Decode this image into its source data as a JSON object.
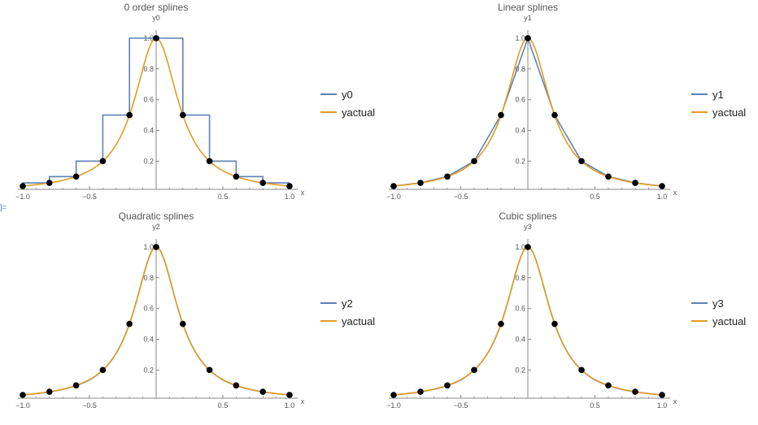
{
  "cell_label": "]=",
  "colors": {
    "spline": "#5e81b5",
    "actual": "#e19c24",
    "axis": "#888888",
    "points": "#000000",
    "tick_text": "#555555",
    "title_text": "#555555"
  },
  "chart_data": [
    {
      "type": "line",
      "title": "0 order splines",
      "xlabel": "x",
      "ylabel": "y0",
      "xlim": [
        -1.0,
        1.0
      ],
      "ylim": [
        0.038,
        1.0
      ],
      "x_ticks": [
        "-1.0",
        "-0.5",
        "0.5",
        "1.0"
      ],
      "y_ticks": [
        "0.2",
        "0.4",
        "0.6",
        "0.8",
        "1.0"
      ],
      "legend": "right",
      "series": [
        {
          "name": "y0",
          "kind": "step",
          "x": [
            -1.0,
            -0.8,
            -0.6,
            -0.4,
            -0.2,
            0.0,
            0.2,
            0.4,
            0.6,
            0.8,
            1.0
          ],
          "y": [
            0.038,
            0.059,
            0.1,
            0.2,
            0.5,
            1.0,
            0.5,
            0.2,
            0.1,
            0.059,
            0.038
          ]
        },
        {
          "name": "yactual",
          "kind": "function",
          "formula": "1/(1+25x^2)"
        }
      ],
      "points": {
        "x": [
          -1.0,
          -0.8,
          -0.6,
          -0.4,
          -0.2,
          0.0,
          0.2,
          0.4,
          0.6,
          0.8,
          1.0
        ],
        "y": [
          0.038,
          0.059,
          0.1,
          0.2,
          0.5,
          1.0,
          0.5,
          0.2,
          0.1,
          0.059,
          0.038
        ]
      }
    },
    {
      "type": "line",
      "title": "Linear splines",
      "xlabel": "x",
      "ylabel": "y1",
      "xlim": [
        -1.0,
        1.0
      ],
      "ylim": [
        0.038,
        1.0
      ],
      "x_ticks": [
        "-1.0",
        "-0.5",
        "0.5",
        "1.0"
      ],
      "y_ticks": [
        "0.2",
        "0.4",
        "0.6",
        "0.8",
        "1.0"
      ],
      "legend": "right",
      "series": [
        {
          "name": "y1",
          "kind": "linear",
          "x": [
            -1.0,
            -0.8,
            -0.6,
            -0.4,
            -0.2,
            0.0,
            0.2,
            0.4,
            0.6,
            0.8,
            1.0
          ],
          "y": [
            0.038,
            0.059,
            0.1,
            0.2,
            0.5,
            1.0,
            0.5,
            0.2,
            0.1,
            0.059,
            0.038
          ]
        },
        {
          "name": "yactual",
          "kind": "function",
          "formula": "1/(1+25x^2)"
        }
      ],
      "points": {
        "x": [
          -1.0,
          -0.8,
          -0.6,
          -0.4,
          -0.2,
          0.0,
          0.2,
          0.4,
          0.6,
          0.8,
          1.0
        ],
        "y": [
          0.038,
          0.059,
          0.1,
          0.2,
          0.5,
          1.0,
          0.5,
          0.2,
          0.1,
          0.059,
          0.038
        ]
      }
    },
    {
      "type": "line",
      "title": "Quadratic splines",
      "xlabel": "x",
      "ylabel": "y2",
      "xlim": [
        -1.0,
        1.0
      ],
      "ylim": [
        0.038,
        1.0
      ],
      "x_ticks": [
        "-1.0",
        "-0.5",
        "0.5",
        "1.0"
      ],
      "y_ticks": [
        "0.2",
        "0.4",
        "0.6",
        "0.8",
        "1.0"
      ],
      "legend": "right",
      "series": [
        {
          "name": "y2",
          "kind": "smooth",
          "x": [
            -1.0,
            -0.8,
            -0.6,
            -0.4,
            -0.2,
            0.0,
            0.2,
            0.4,
            0.6,
            0.8,
            1.0
          ],
          "y": [
            0.038,
            0.059,
            0.1,
            0.2,
            0.5,
            1.0,
            0.5,
            0.2,
            0.1,
            0.059,
            0.038
          ]
        },
        {
          "name": "yactual",
          "kind": "function",
          "formula": "1/(1+25x^2)"
        }
      ],
      "points": {
        "x": [
          -1.0,
          -0.8,
          -0.6,
          -0.4,
          -0.2,
          0.0,
          0.2,
          0.4,
          0.6,
          0.8,
          1.0
        ],
        "y": [
          0.038,
          0.059,
          0.1,
          0.2,
          0.5,
          1.0,
          0.5,
          0.2,
          0.1,
          0.059,
          0.038
        ]
      }
    },
    {
      "type": "line",
      "title": "Cubic splines",
      "xlabel": "x",
      "ylabel": "y3",
      "xlim": [
        -1.0,
        1.0
      ],
      "ylim": [
        0.038,
        1.0
      ],
      "x_ticks": [
        "-1.0",
        "-0.5",
        "0.5",
        "1.0"
      ],
      "y_ticks": [
        "0.2",
        "0.4",
        "0.6",
        "0.8",
        "1.0"
      ],
      "legend": "right",
      "series": [
        {
          "name": "y3",
          "kind": "smooth",
          "x": [
            -1.0,
            -0.8,
            -0.6,
            -0.4,
            -0.2,
            0.0,
            0.2,
            0.4,
            0.6,
            0.8,
            1.0
          ],
          "y": [
            0.038,
            0.059,
            0.1,
            0.2,
            0.5,
            1.0,
            0.5,
            0.2,
            0.1,
            0.059,
            0.038
          ]
        },
        {
          "name": "yactual",
          "kind": "function",
          "formula": "1/(1+25x^2)"
        }
      ],
      "points": {
        "x": [
          -1.0,
          -0.8,
          -0.6,
          -0.4,
          -0.2,
          0.0,
          0.2,
          0.4,
          0.6,
          0.8,
          1.0
        ],
        "y": [
          0.038,
          0.059,
          0.1,
          0.2,
          0.5,
          1.0,
          0.5,
          0.2,
          0.1,
          0.059,
          0.038
        ]
      }
    }
  ]
}
